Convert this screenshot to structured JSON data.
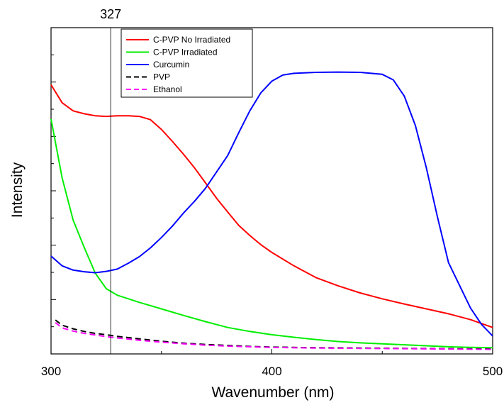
{
  "chart_data": {
    "type": "line",
    "title": "",
    "xlabel": "Wavenumber (nm)",
    "ylabel": "Intensity",
    "xlim": [
      300,
      500
    ],
    "ylim": [
      0,
      100
    ],
    "x_ticks": [
      300,
      400,
      500
    ],
    "x_tick_labels": [
      "300",
      "400",
      "500"
    ],
    "y_tick_labels": [],
    "grid": false,
    "legend_position": "top-left",
    "vertical_marker": {
      "x": 327,
      "label": "327"
    },
    "series": [
      {
        "name": "C-PVP No Irradiated",
        "color": "#ff0000",
        "dash": "solid",
        "x": [
          300,
          305,
          310,
          315,
          320,
          325,
          330,
          335,
          340,
          345,
          350,
          355,
          360,
          365,
          370,
          375,
          380,
          385,
          390,
          395,
          400,
          410,
          420,
          430,
          440,
          450,
          460,
          470,
          480,
          490,
          500
        ],
        "y": [
          82.5,
          77,
          74.5,
          73.6,
          73,
          72.8,
          73,
          73,
          72.8,
          71.8,
          68.8,
          65.1,
          61.2,
          57,
          52.4,
          47.7,
          43.5,
          39.4,
          36.3,
          33.5,
          31.1,
          27,
          23.4,
          20.9,
          18.7,
          16.9,
          15.3,
          13.8,
          12.3,
          10.5,
          8.1
        ]
      },
      {
        "name": "C-PVP Irradiated",
        "color": "#00ee00",
        "dash": "solid",
        "x": [
          300,
          305,
          310,
          315,
          320,
          325,
          330,
          340,
          350,
          360,
          370,
          380,
          390,
          400,
          410,
          420,
          430,
          440,
          450,
          460,
          470,
          480,
          490,
          500
        ],
        "y": [
          72,
          54,
          41,
          32.7,
          24.8,
          20,
          18,
          15.8,
          13.8,
          11.8,
          9.9,
          8.1,
          6.9,
          5.9,
          5.1,
          4.4,
          3.8,
          3.4,
          3.1,
          2.8,
          2.5,
          2.2,
          2,
          1.9
        ]
      },
      {
        "name": "Curcumin",
        "color": "#0000ff",
        "dash": "solid",
        "x": [
          300,
          305,
          310,
          315,
          320,
          325,
          330,
          335,
          340,
          345,
          350,
          355,
          360,
          365,
          370,
          375,
          380,
          385,
          390,
          395,
          400,
          405,
          410,
          420,
          430,
          440,
          450,
          455,
          460,
          465,
          470,
          475,
          480,
          485,
          490,
          495,
          500
        ],
        "y": [
          30,
          27,
          25.7,
          25.2,
          24.9,
          25.3,
          26,
          27.8,
          29.8,
          32.5,
          35.7,
          39.2,
          43.2,
          46.8,
          50.8,
          55.8,
          60.8,
          67.8,
          74.5,
          80,
          83.6,
          85.5,
          86,
          86.3,
          86.4,
          86.3,
          85.7,
          84,
          79,
          70,
          57,
          42,
          28,
          21,
          14,
          9,
          5.5
        ]
      },
      {
        "name": "PVP",
        "color": "#000000",
        "dash": "dashed",
        "x": [
          302,
          305,
          310,
          315,
          320,
          325,
          330,
          340,
          350,
          360,
          370,
          380,
          390,
          400,
          420,
          440,
          460,
          480,
          500
        ],
        "y": [
          10.4,
          8.8,
          7.7,
          6.9,
          6.3,
          5.9,
          5.4,
          4.6,
          3.9,
          3.3,
          2.9,
          2.6,
          2.3,
          2.1,
          1.9,
          1.8,
          1.7,
          1.6,
          1.5
        ]
      },
      {
        "name": "Ethanol",
        "color": "#ff00ff",
        "dash": "dashed",
        "x": [
          302,
          305,
          310,
          315,
          320,
          325,
          330,
          340,
          350,
          360,
          370,
          380,
          390,
          400,
          420,
          440,
          460,
          480,
          500
        ],
        "y": [
          9.6,
          8,
          7,
          6.3,
          5.8,
          5.3,
          4.9,
          4.2,
          3.6,
          3.1,
          2.7,
          2.4,
          2.2,
          2,
          1.8,
          1.7,
          1.6,
          1.5,
          1.4
        ]
      }
    ]
  }
}
